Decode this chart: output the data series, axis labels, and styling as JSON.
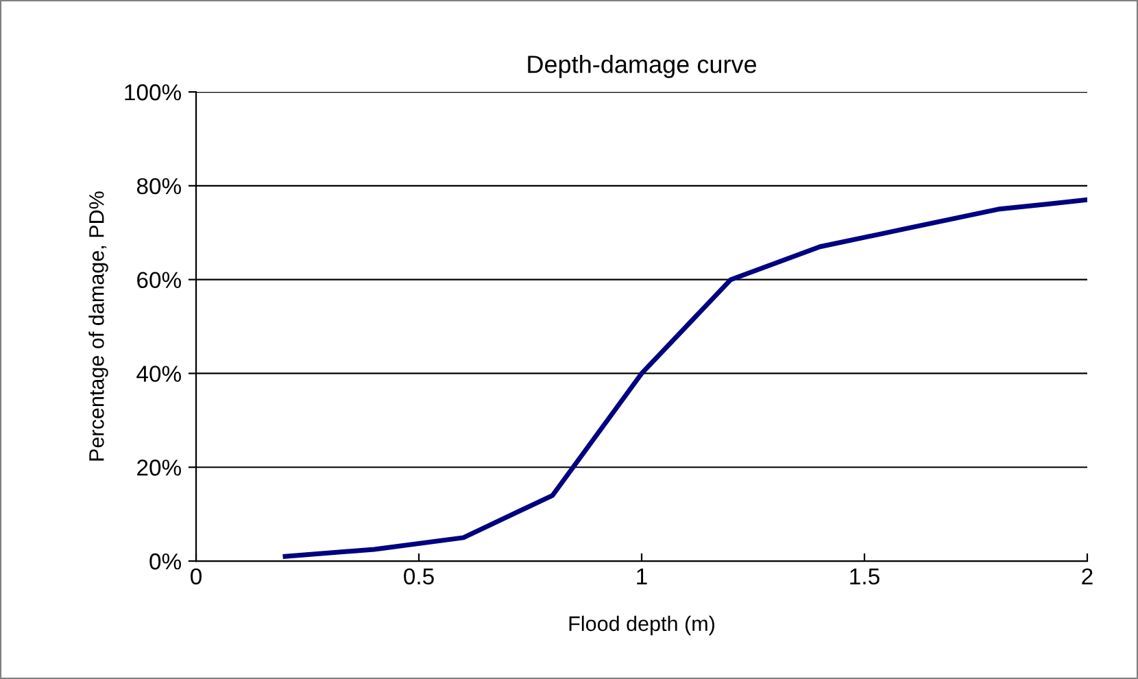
{
  "chart_data": {
    "type": "line",
    "title": "Depth-damage curve",
    "xlabel": "Flood depth (m)",
    "ylabel": "Percentage of damage, PD%",
    "x": [
      0.2,
      0.4,
      0.6,
      0.8,
      1.0,
      1.2,
      1.4,
      1.6,
      1.8,
      2.0
    ],
    "series": [
      {
        "color": "#000080",
        "values": [
          1,
          2.5,
          5,
          14,
          40,
          60,
          67,
          71,
          75,
          77
        ]
      }
    ],
    "xlim": [
      0,
      2
    ],
    "xticks": [
      0,
      0.5,
      1,
      1.5,
      2
    ],
    "ylim": [
      0,
      100
    ],
    "yticks": [
      {
        "value": 0,
        "label": "0%"
      },
      {
        "value": 20,
        "label": "20%"
      },
      {
        "value": 40,
        "label": "40%"
      },
      {
        "value": 60,
        "label": "60%"
      },
      {
        "value": 80,
        "label": "80%"
      },
      {
        "value": 100,
        "label": "100%"
      }
    ],
    "grid": "y",
    "marker": "none",
    "line_style": "solid"
  }
}
